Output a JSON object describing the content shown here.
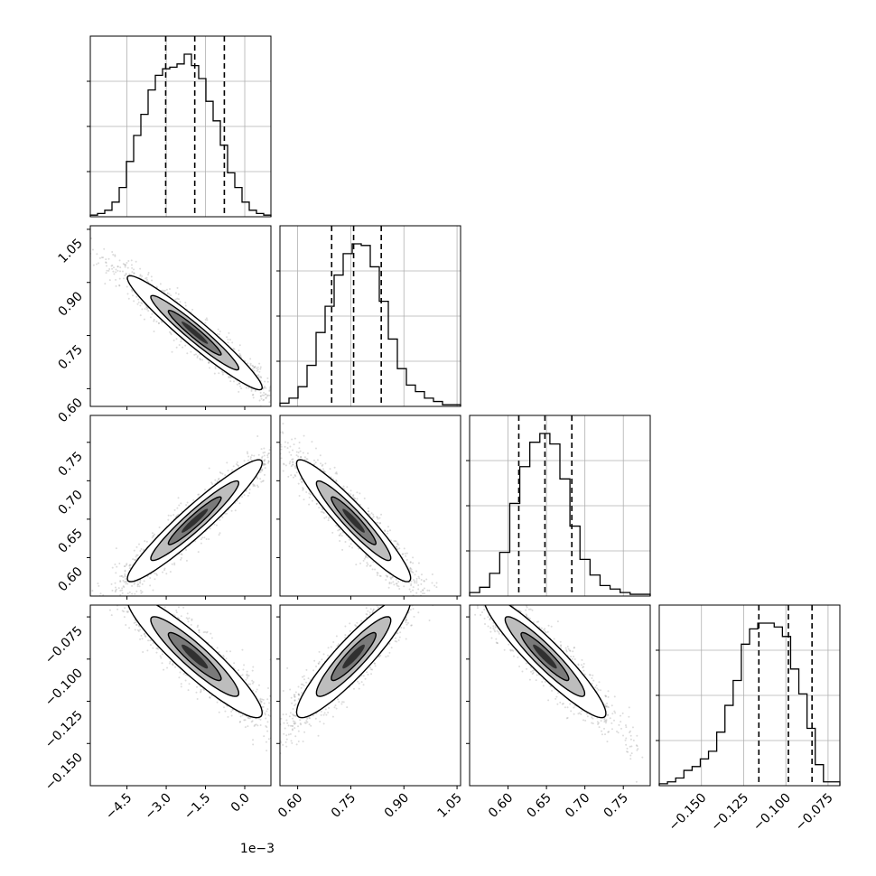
{
  "chart_data": {
    "type": "corner",
    "parameters": [
      {
        "range": [
          -5.9,
          1.0
        ],
        "ticks": [
          -4.5,
          -3.0,
          -1.5,
          0.0
        ],
        "tick_labels": [
          "−4.5",
          "−3.0",
          "−1.5",
          "0.0"
        ],
        "offset_label": "1e−3",
        "quantiles": [
          -3.02,
          -1.91,
          -0.78
        ],
        "histogram": {
          "counts": [
            1,
            2,
            4,
            9,
            18,
            34,
            50,
            63,
            78,
            87,
            91,
            92,
            94,
            100,
            93,
            85,
            71,
            59,
            44,
            27,
            18,
            9,
            4,
            2,
            1
          ]
        }
      },
      {
        "range": [
          0.55,
          1.06
        ],
        "ticks": [
          0.6,
          0.75,
          0.9,
          1.05
        ],
        "tick_labels": [
          "0.60",
          "0.75",
          "0.90",
          "1.05"
        ],
        "quantiles": [
          0.696,
          0.758,
          0.836
        ],
        "histogram": {
          "counts": [
            2,
            5,
            12,
            25,
            45,
            61,
            80,
            93,
            99,
            98,
            85,
            64,
            41,
            23,
            13,
            9,
            5,
            3,
            1,
            1
          ]
        }
      },
      {
        "range": [
          0.55,
          0.785
        ],
        "ticks": [
          0.6,
          0.65,
          0.7,
          0.75
        ],
        "tick_labels": [
          "0.60",
          "0.65",
          "0.70",
          "0.75"
        ],
        "quantiles": [
          0.614,
          0.648,
          0.683
        ],
        "histogram": {
          "counts": [
            2,
            5,
            13,
            25,
            53,
            74,
            88,
            93,
            87,
            67,
            40,
            21,
            12,
            6,
            4,
            2,
            1,
            1
          ]
        }
      },
      {
        "range": [
          -0.175,
          -0.068
        ],
        "ticks": [
          -0.15,
          -0.125,
          -0.1,
          -0.075
        ],
        "tick_labels": [
          "−0.150",
          "−0.125",
          "−0.100",
          "−0.075"
        ],
        "quantiles": [
          -0.116,
          -0.0985,
          -0.0845
        ],
        "histogram": {
          "counts": [
            1,
            2,
            4,
            8,
            10,
            14,
            18,
            28,
            42,
            55,
            74,
            82,
            85,
            85,
            83,
            78,
            61,
            48,
            30,
            11,
            2,
            2
          ]
        }
      }
    ],
    "pairs": [
      {
        "row": 1,
        "col": 0,
        "rho": -0.96
      },
      {
        "row": 2,
        "col": 0,
        "rho": 0.95
      },
      {
        "row": 2,
        "col": 1,
        "rho": -0.94
      },
      {
        "row": 3,
        "col": 0,
        "rho": -0.92
      },
      {
        "row": 3,
        "col": 1,
        "rho": 0.91
      },
      {
        "row": 3,
        "col": 2,
        "rho": -0.93
      }
    ],
    "grid": true,
    "colors": {
      "line": "#000000",
      "quantile": "#000000",
      "scatter": "#9a9a9a",
      "grid": "#b0b0b0"
    }
  }
}
